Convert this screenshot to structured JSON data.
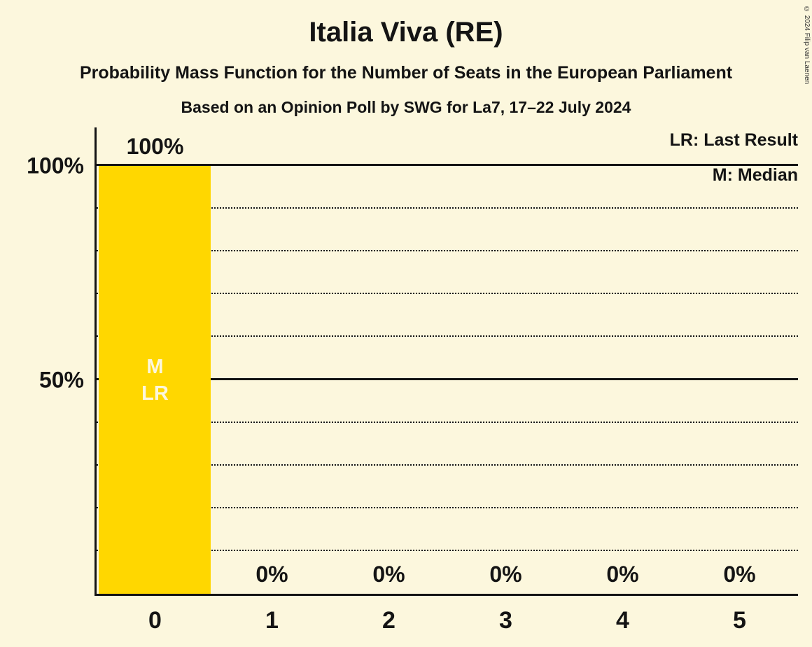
{
  "title": "Italia Viva (RE)",
  "subtitle1": "Probability Mass Function for the Number of Seats in the European Parliament",
  "subtitle2": "Based on an Opinion Poll by SWG for La7, 17–22 July 2024",
  "copyright": "© 2024 Filip van Laenen",
  "legend": {
    "lr": "LR: Last Result",
    "m": "M: Median"
  },
  "chart_data": {
    "type": "bar",
    "title": "Italia Viva (RE)",
    "xlabel": "",
    "ylabel": "",
    "categories": [
      "0",
      "1",
      "2",
      "3",
      "4",
      "5"
    ],
    "values": [
      100,
      0,
      0,
      0,
      0,
      0
    ],
    "value_labels": [
      "100%",
      "0%",
      "0%",
      "0%",
      "0%",
      "0%"
    ],
    "ylim": [
      0,
      100
    ],
    "yticks": [
      {
        "value": 100,
        "label": "100%"
      },
      {
        "value": 50,
        "label": "50%"
      }
    ],
    "grid": {
      "interval": 10,
      "max": 100,
      "solid_at": [
        50,
        100
      ]
    },
    "legend_position": "top-right",
    "bar_color": "#FFD700",
    "background_color": "#FCF7DD",
    "annotation_text_color": "#FCF7DD",
    "bar_annotations": [
      {
        "category": "0",
        "labels": [
          "M",
          "LR"
        ]
      }
    ]
  }
}
